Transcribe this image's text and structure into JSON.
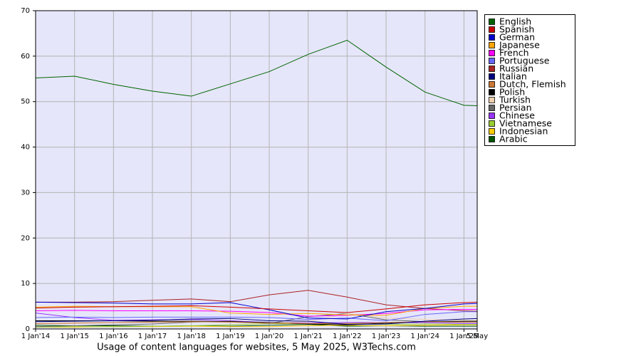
{
  "chart_data": {
    "type": "line",
    "title": "Usage of content languages for websites, 5 May 2025, W3Techs.com",
    "x": [
      2014,
      2015,
      2016,
      2017,
      2018,
      2019,
      2020,
      2021,
      2022,
      2023,
      2024,
      2025,
      2025.34
    ],
    "xlim": [
      2014,
      2025.34
    ],
    "xticks": [
      {
        "value": 2014,
        "label": "1 Jan'14"
      },
      {
        "value": 2015,
        "label": "1 Jan'15"
      },
      {
        "value": 2016,
        "label": "1 Jan'16"
      },
      {
        "value": 2017,
        "label": "1 Jan'17"
      },
      {
        "value": 2018,
        "label": "1 Jan'18"
      },
      {
        "value": 2019,
        "label": "1 Jan'19"
      },
      {
        "value": 2020,
        "label": "1 Jan'20"
      },
      {
        "value": 2021,
        "label": "1 Jan'21"
      },
      {
        "value": 2022,
        "label": "1 Jan'22"
      },
      {
        "value": 2023,
        "label": "1 Jan'23"
      },
      {
        "value": 2024,
        "label": "1 Jan'24"
      },
      {
        "value": 2025,
        "label": "1 Jan'25"
      },
      {
        "value": 2025.34,
        "label": "5 May"
      }
    ],
    "ylim": [
      0,
      70
    ],
    "yticks": [
      0,
      10,
      20,
      30,
      40,
      50,
      60,
      70
    ],
    "grid": true,
    "legend": "right",
    "series": [
      {
        "name": "English",
        "color": "#006400",
        "values": [
          55.2,
          55.6,
          53.8,
          52.3,
          51.2,
          53.9,
          56.6,
          60.4,
          63.5,
          57.6,
          52.1,
          49.2,
          49.1
        ]
      },
      {
        "name": "Spanish",
        "color": "#cc0000",
        "values": [
          4.6,
          4.8,
          4.9,
          5.0,
          5.1,
          4.8,
          4.4,
          4.0,
          3.6,
          4.4,
          5.3,
          5.8,
          5.9
        ]
      },
      {
        "name": "German",
        "color": "#0000cc",
        "values": [
          5.9,
          5.8,
          5.7,
          5.5,
          5.5,
          5.8,
          4.2,
          2.4,
          2.2,
          3.8,
          4.5,
          5.5,
          5.6
        ]
      },
      {
        "name": "Japanese",
        "color": "#ffa500",
        "values": [
          4.8,
          5.0,
          4.9,
          4.9,
          4.9,
          3.5,
          3.2,
          3.4,
          3.1,
          3.0,
          4.5,
          5.0,
          5.0
        ]
      },
      {
        "name": "French",
        "color": "#ff00ff",
        "values": [
          4.0,
          4.1,
          4.0,
          4.0,
          4.0,
          3.9,
          3.6,
          2.8,
          3.0,
          3.4,
          4.2,
          4.3,
          4.3
        ]
      },
      {
        "name": "Portuguese",
        "color": "#6666ff",
        "values": [
          2.5,
          2.6,
          2.5,
          2.6,
          2.6,
          2.6,
          2.5,
          2.1,
          2.4,
          1.8,
          3.2,
          3.8,
          3.8
        ]
      },
      {
        "name": "Russian",
        "color": "#aa2222",
        "values": [
          5.9,
          5.9,
          6.0,
          6.3,
          6.6,
          6.0,
          7.5,
          8.5,
          7.0,
          5.3,
          4.5,
          4.0,
          3.9
        ]
      },
      {
        "name": "Italian",
        "color": "#000080",
        "values": [
          1.6,
          1.7,
          1.8,
          1.9,
          2.2,
          2.3,
          1.8,
          1.7,
          1.0,
          1.1,
          1.7,
          2.2,
          2.3
        ]
      },
      {
        "name": "Dutch, Flemish",
        "color": "#cc7733",
        "values": [
          1.2,
          1.3,
          1.4,
          1.5,
          1.6,
          1.5,
          1.3,
          1.2,
          1.2,
          1.4,
          1.6,
          1.5,
          1.5
        ]
      },
      {
        "name": "Polish",
        "color": "#000000",
        "values": [
          1.8,
          1.8,
          1.8,
          1.7,
          1.7,
          1.6,
          1.4,
          1.1,
          0.9,
          1.3,
          1.6,
          1.7,
          1.7
        ]
      },
      {
        "name": "Turkish",
        "color": "#f0d0b0",
        "values": [
          1.1,
          1.2,
          1.4,
          1.5,
          1.6,
          1.5,
          1.3,
          1.6,
          3.4,
          2.4,
          2.1,
          1.9,
          1.9
        ]
      },
      {
        "name": "Persian",
        "color": "#666666",
        "values": [
          0.5,
          0.7,
          0.9,
          1.1,
          1.5,
          1.7,
          1.2,
          2.7,
          3.4,
          2.0,
          1.6,
          1.5,
          1.5
        ]
      },
      {
        "name": "Chinese",
        "color": "#9933ff",
        "values": [
          3.5,
          2.5,
          1.9,
          2.0,
          2.1,
          1.8,
          1.4,
          1.3,
          1.4,
          1.4,
          1.4,
          1.2,
          1.2
        ]
      },
      {
        "name": "Vietnamese",
        "color": "#99cc33",
        "values": [
          0.4,
          0.5,
          0.5,
          0.6,
          0.7,
          0.9,
          1.2,
          1.1,
          1.2,
          1.0,
          1.1,
          1.0,
          1.0
        ]
      },
      {
        "name": "Indonesian",
        "color": "#ffcc00",
        "values": [
          0.4,
          0.4,
          0.5,
          0.5,
          0.6,
          0.5,
          0.5,
          0.7,
          0.8,
          0.7,
          0.8,
          0.9,
          0.9
        ]
      },
      {
        "name": "Arabic",
        "color": "#005500",
        "values": [
          0.8,
          0.7,
          0.7,
          0.6,
          0.7,
          0.6,
          0.8,
          1.0,
          0.6,
          0.7,
          0.6,
          0.6,
          0.6
        ]
      }
    ]
  }
}
